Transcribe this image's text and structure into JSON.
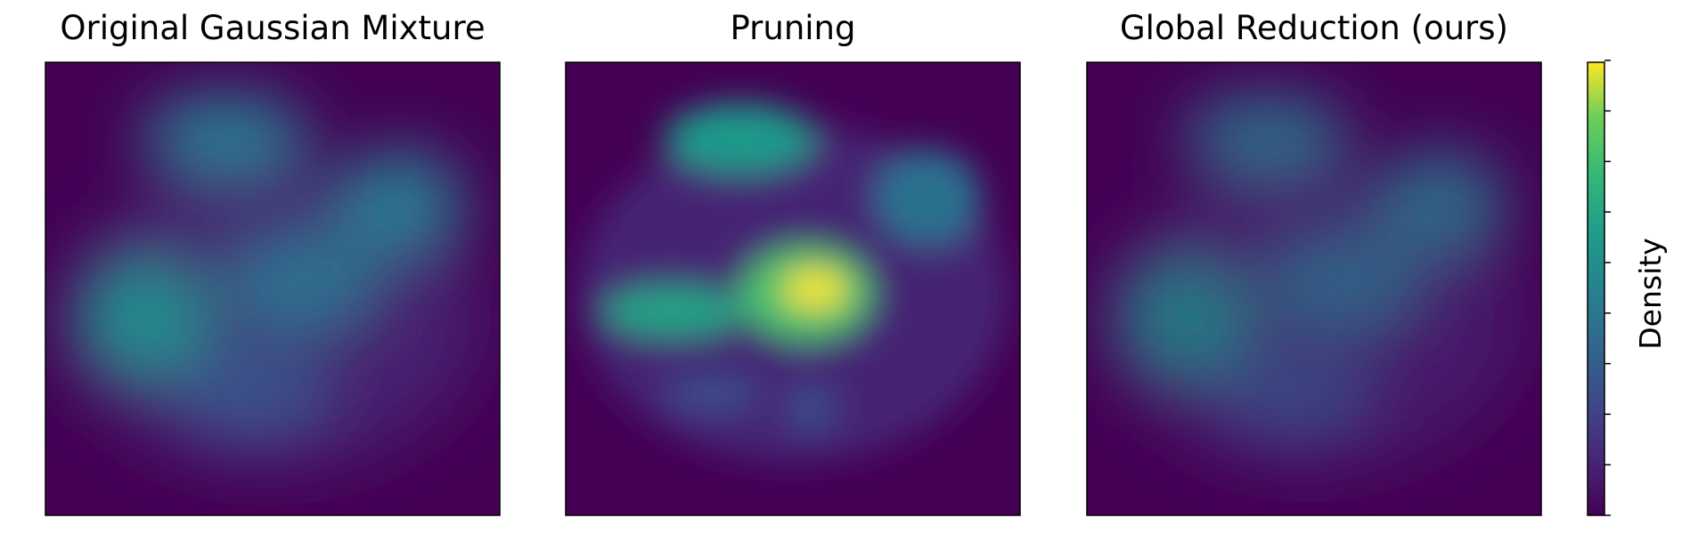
{
  "chart_data": [
    {
      "type": "heatmap",
      "title": "Original Gaussian Mixture"
    },
    {
      "type": "heatmap",
      "title": "Pruning"
    },
    {
      "type": "heatmap",
      "title": "Global Reduction (ours)"
    }
  ],
  "colorbar": {
    "label": "Density"
  }
}
